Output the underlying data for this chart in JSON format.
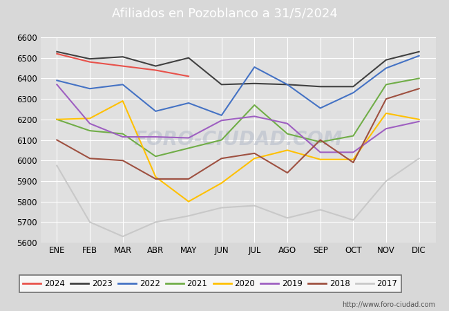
{
  "title": "Afiliados en Pozoblanco a 31/5/2024",
  "title_bg_color": "#5b8dd9",
  "title_text_color": "white",
  "ylim": [
    5600,
    6600
  ],
  "yticks": [
    5600,
    5700,
    5800,
    5900,
    6000,
    6100,
    6200,
    6300,
    6400,
    6500,
    6600
  ],
  "months": [
    "ENE",
    "FEB",
    "MAR",
    "ABR",
    "MAY",
    "JUN",
    "JUL",
    "AGO",
    "SEP",
    "OCT",
    "NOV",
    "DIC"
  ],
  "watermark": "FORO-CIUDAD.COM",
  "url": "http://www.foro-ciudad.com",
  "series": {
    "2024": {
      "color": "#e8514a",
      "data": [
        6520,
        6480,
        6460,
        6440,
        6410,
        null,
        null,
        null,
        null,
        null,
        null,
        null
      ]
    },
    "2023": {
      "color": "#404040",
      "data": [
        6530,
        6495,
        6505,
        6460,
        6500,
        6370,
        6375,
        6370,
        6360,
        6360,
        6490,
        6530
      ]
    },
    "2022": {
      "color": "#4472c4",
      "data": [
        6390,
        6350,
        6370,
        6240,
        6280,
        6220,
        6455,
        6370,
        6255,
        6330,
        6450,
        6510
      ]
    },
    "2021": {
      "color": "#70ad47",
      "data": [
        6200,
        6145,
        6130,
        6020,
        6060,
        6100,
        6270,
        6130,
        6090,
        6120,
        6370,
        6400
      ]
    },
    "2020": {
      "color": "#ffc000",
      "data": [
        6200,
        6205,
        6290,
        5920,
        5800,
        5890,
        6010,
        6050,
        6005,
        6005,
        6230,
        6200
      ]
    },
    "2019": {
      "color": "#9e5fc1",
      "data": [
        6370,
        6180,
        6115,
        6115,
        6110,
        6195,
        6215,
        6180,
        6040,
        6040,
        6155,
        6190
      ]
    },
    "2018": {
      "color": "#9e5040",
      "data": [
        6100,
        6010,
        6000,
        5910,
        5910,
        6010,
        6035,
        5940,
        6100,
        5990,
        6300,
        6350
      ]
    },
    "2017": {
      "color": "#c8c8c8",
      "data": [
        5975,
        5700,
        5630,
        5700,
        5730,
        5770,
        5780,
        5720,
        5760,
        5710,
        5900,
        6010
      ]
    }
  },
  "legend_order": [
    "2024",
    "2023",
    "2022",
    "2021",
    "2020",
    "2019",
    "2018",
    "2017"
  ],
  "fig_bg_color": "#d8d8d8",
  "plot_bg_color": "#e0e0e0",
  "grid_color": "white",
  "title_fontsize": 13,
  "tick_fontsize": 8.5,
  "legend_fontsize": 8.5
}
